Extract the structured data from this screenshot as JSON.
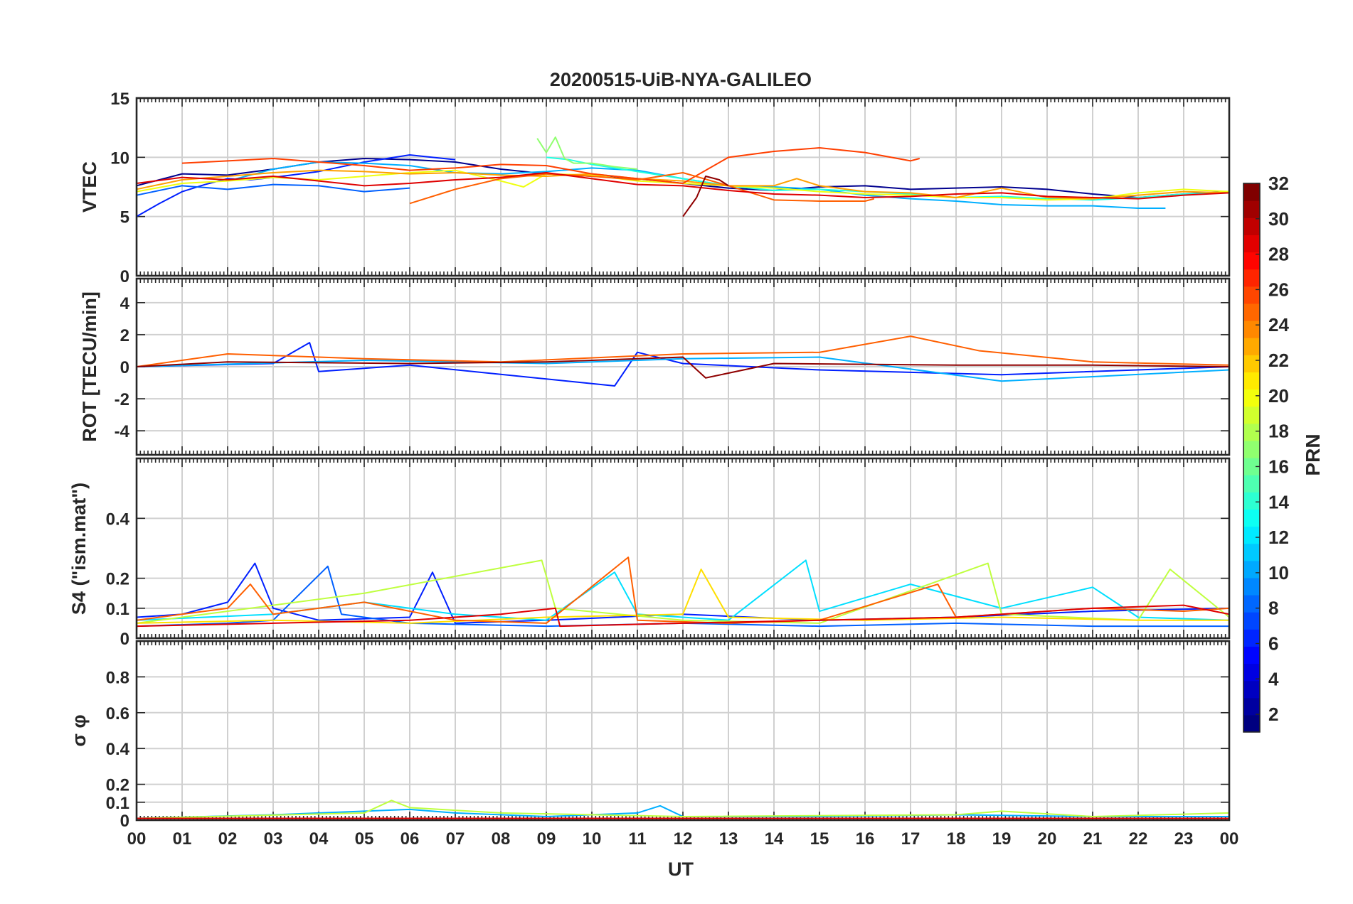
{
  "figure": {
    "title": "20200515-UiB-NYA-GALILEO",
    "xlabel": "UT",
    "colorbar": {
      "label": "PRN",
      "ticks": [
        "2",
        "4",
        "6",
        "8",
        "10",
        "12",
        "14",
        "16",
        "18",
        "20",
        "22",
        "24",
        "26",
        "28",
        "30",
        "32"
      ],
      "range": [
        1,
        32
      ],
      "colormap": "jet"
    }
  },
  "chart_data": [
    {
      "type": "line",
      "panel": "VTEC",
      "ylabel": "VTEC",
      "ylim": [
        0,
        15
      ],
      "yticks": [
        "0",
        "5",
        "10",
        "15"
      ],
      "xlim": [
        0,
        24
      ],
      "xticks": [
        "00",
        "01",
        "02",
        "03",
        "04",
        "05",
        "06",
        "07",
        "08",
        "09",
        "10",
        "11",
        "12",
        "13",
        "14",
        "15",
        "16",
        "17",
        "18",
        "19",
        "20",
        "21",
        "22",
        "23",
        "00"
      ],
      "grid": true,
      "series": [
        {
          "color": "#00008f",
          "x": [
            0,
            1,
            2,
            3,
            4,
            5,
            6,
            7,
            8,
            9,
            10,
            11,
            12,
            13,
            14,
            15,
            16,
            17,
            18,
            19,
            20,
            21,
            22,
            23,
            24
          ],
          "y": [
            7.6,
            8.6,
            8.5,
            9.0,
            9.6,
            9.9,
            9.8,
            9.6,
            9.0,
            8.6,
            8.4,
            8.2,
            7.8,
            7.4,
            7.2,
            7.5,
            7.6,
            7.3,
            7.4,
            7.5,
            7.3,
            6.9,
            6.6,
            6.9,
            7.1
          ]
        },
        {
          "color": "#001fff",
          "x": [
            0,
            0.5,
            1,
            1.5,
            2,
            2.5,
            3,
            4,
            5,
            6,
            6.5,
            7
          ],
          "y": [
            5.0,
            6.1,
            7.1,
            7.7,
            8.2,
            8.1,
            8.3,
            8.8,
            9.6,
            10.2,
            10.0,
            9.8
          ]
        },
        {
          "color": "#0060ff",
          "x": [
            0,
            1,
            2,
            3,
            4,
            5,
            6
          ],
          "y": [
            6.8,
            7.6,
            7.3,
            7.7,
            7.6,
            7.1,
            7.4
          ]
        },
        {
          "color": "#00afff",
          "x": [
            2,
            3,
            4,
            5,
            6,
            7,
            8,
            9,
            10,
            11,
            12,
            13,
            14,
            15,
            16,
            17,
            18,
            19,
            20,
            21,
            22,
            22.6
          ],
          "y": [
            8.0,
            9.0,
            9.6,
            9.5,
            9.3,
            8.7,
            8.6,
            8.8,
            9.1,
            8.9,
            8.2,
            7.6,
            7.5,
            7.3,
            6.8,
            6.5,
            6.3,
            6.0,
            5.9,
            5.9,
            5.7,
            5.7
          ]
        },
        {
          "color": "#20ffdf",
          "x": [
            9,
            9.5,
            10,
            11,
            12,
            13,
            14,
            15,
            16,
            17,
            18,
            19,
            20,
            21,
            22,
            23,
            24
          ],
          "y": [
            10.0,
            9.8,
            9.4,
            8.8,
            8.2,
            7.6,
            7.2,
            7.3,
            7.1,
            6.9,
            6.6,
            6.7,
            6.5,
            6.4,
            6.6,
            6.9,
            7.0
          ]
        },
        {
          "color": "#90ff6f",
          "x": [
            8.8,
            9.0,
            9.2,
            9.4,
            9.6,
            10,
            10.5,
            11
          ],
          "y": [
            11.6,
            10.4,
            11.7,
            9.9,
            9.5,
            9.5,
            9.2,
            9.0
          ]
        },
        {
          "color": "#efff10",
          "x": [
            0,
            1,
            2,
            3,
            4,
            5,
            6,
            7,
            8,
            8.5,
            9,
            10,
            11,
            12,
            13,
            14,
            15,
            16,
            17,
            18,
            19,
            20,
            21,
            22,
            23,
            24
          ],
          "y": [
            7.1,
            7.8,
            8.0,
            8.3,
            8.1,
            8.4,
            8.7,
            8.9,
            8.0,
            7.5,
            8.6,
            8.5,
            8.0,
            7.8,
            7.6,
            7.4,
            7.1,
            6.9,
            6.8,
            6.6,
            6.6,
            6.4,
            6.5,
            7.0,
            7.3,
            7.1
          ]
        },
        {
          "color": "#ff9f00",
          "x": [
            0,
            1,
            2,
            3,
            4,
            5,
            6,
            7,
            8,
            9,
            10,
            11,
            12,
            13,
            14,
            14.5,
            15,
            16,
            17,
            18,
            19,
            20,
            21,
            22,
            23,
            24
          ],
          "y": [
            7.3,
            8.1,
            8.4,
            8.7,
            8.9,
            8.8,
            8.6,
            8.7,
            8.5,
            8.4,
            8.6,
            8.2,
            8.0,
            7.6,
            7.6,
            8.2,
            7.6,
            7.1,
            7.0,
            6.6,
            7.4,
            6.6,
            6.5,
            6.8,
            7.1,
            7.0
          ]
        },
        {
          "color": "#ff3f00",
          "x": [
            1,
            2,
            3,
            4,
            5,
            6,
            7,
            8,
            9,
            10,
            11,
            12,
            13,
            14,
            15,
            16,
            17,
            17.2
          ],
          "y": [
            9.5,
            9.7,
            9.9,
            9.6,
            9.3,
            8.9,
            9.1,
            9.4,
            9.3,
            8.6,
            8.2,
            7.8,
            10.0,
            10.5,
            10.8,
            10.4,
            9.7,
            9.9
          ]
        },
        {
          "color": "#ff5f00",
          "x": [
            6,
            7,
            8,
            9,
            10,
            11,
            12,
            13,
            14,
            15,
            16,
            16.2
          ],
          "y": [
            6.1,
            7.3,
            8.2,
            8.6,
            8.4,
            8.1,
            8.7,
            7.6,
            6.4,
            6.3,
            6.3,
            6.5
          ]
        },
        {
          "color": "#df0000",
          "x": [
            0,
            1,
            2,
            3,
            4,
            5,
            6,
            7,
            8,
            9,
            10,
            11,
            12,
            13,
            14,
            15,
            16,
            17,
            18,
            19,
            20,
            21,
            22,
            23,
            24
          ],
          "y": [
            7.8,
            8.3,
            8.1,
            8.4,
            8.0,
            7.6,
            7.8,
            8.1,
            8.3,
            8.7,
            8.2,
            7.7,
            7.6,
            7.2,
            6.9,
            6.8,
            6.6,
            6.7,
            6.9,
            7.0,
            6.7,
            6.6,
            6.5,
            6.8,
            7.0
          ]
        },
        {
          "color": "#8f0000",
          "x": [
            12.0,
            12.3,
            12.5,
            12.8,
            13
          ],
          "y": [
            5.0,
            6.6,
            8.4,
            8.1,
            7.6
          ]
        }
      ]
    },
    {
      "type": "line",
      "panel": "ROT",
      "ylabel": "ROT [TECU/min]",
      "ylim": [
        -5.5,
        5.5
      ],
      "yticks": [
        "-4",
        "-2",
        "0",
        "2",
        "4"
      ],
      "xlim": [
        0,
        24
      ],
      "grid": true,
      "series": [
        {
          "color": "#001fff",
          "x": [
            0,
            3,
            3.8,
            4,
            6,
            10.5,
            11,
            12,
            15,
            19,
            24
          ],
          "y": [
            0,
            0.2,
            1.5,
            -0.3,
            0.1,
            -1.2,
            0.9,
            0.2,
            -0.2,
            -0.5,
            0
          ]
        },
        {
          "color": "#00afff",
          "x": [
            0,
            5,
            7,
            9,
            12,
            15,
            19,
            24
          ],
          "y": [
            0,
            0.4,
            0.3,
            0.2,
            0.5,
            0.6,
            -0.9,
            -0.2
          ]
        },
        {
          "color": "#ff5f00",
          "x": [
            0,
            2,
            5,
            8,
            12,
            15,
            17,
            18.5,
            21,
            24
          ],
          "y": [
            0,
            0.8,
            0.5,
            0.3,
            0.8,
            0.9,
            1.9,
            1.0,
            0.3,
            0.1
          ]
        },
        {
          "color": "#8f0000",
          "x": [
            0,
            2,
            6,
            9,
            12,
            12.5,
            14,
            18,
            21,
            24
          ],
          "y": [
            0,
            0.3,
            0.2,
            0.3,
            0.6,
            -0.7,
            0.2,
            0.1,
            0.1,
            0
          ]
        }
      ]
    },
    {
      "type": "line",
      "panel": "S4",
      "ylabel": "S4 (\"ism.mat\")",
      "ylim": [
        0,
        0.6
      ],
      "yticks": [
        "0",
        "0.1",
        "0.2",
        "0.4"
      ],
      "xlim": [
        0,
        24
      ],
      "grid": true,
      "series": [
        {
          "color": "#001fff",
          "x": [
            0,
            1,
            2,
            2.6,
            3,
            4,
            6,
            6.5,
            7,
            9,
            12,
            15,
            18,
            21,
            24
          ],
          "y": [
            0.07,
            0.08,
            0.12,
            0.25,
            0.1,
            0.06,
            0.07,
            0.22,
            0.05,
            0.06,
            0.08,
            0.06,
            0.07,
            0.09,
            0.1
          ]
        },
        {
          "color": "#0060ff",
          "x": [
            0,
            2,
            3,
            4.2,
            4.5,
            6,
            9,
            12,
            15,
            18,
            21,
            24
          ],
          "y": [
            0.04,
            0.05,
            0.06,
            0.24,
            0.08,
            0.05,
            0.04,
            0.05,
            0.04,
            0.05,
            0.04,
            0.04
          ]
        },
        {
          "color": "#00dfff",
          "x": [
            0,
            3,
            5,
            7,
            9,
            10.5,
            11,
            13,
            14.7,
            15,
            17,
            19,
            21,
            22,
            24
          ],
          "y": [
            0.06,
            0.08,
            0.12,
            0.08,
            0.06,
            0.22,
            0.08,
            0.06,
            0.26,
            0.09,
            0.18,
            0.1,
            0.17,
            0.07,
            0.06
          ]
        },
        {
          "color": "#bfff3f",
          "x": [
            0,
            5,
            8.9,
            9.2,
            12,
            15,
            18.7,
            19,
            22,
            22.7,
            24
          ],
          "y": [
            0.05,
            0.15,
            0.26,
            0.1,
            0.06,
            0.05,
            0.25,
            0.08,
            0.06,
            0.23,
            0.07
          ]
        },
        {
          "color": "#ffdf00",
          "x": [
            0,
            3,
            6,
            9,
            12,
            12.4,
            13,
            16,
            19,
            22,
            24
          ],
          "y": [
            0.05,
            0.06,
            0.05,
            0.07,
            0.08,
            0.23,
            0.07,
            0.06,
            0.07,
            0.06,
            0.06
          ]
        },
        {
          "color": "#ff5f00",
          "x": [
            0,
            2,
            2.5,
            3,
            5,
            7,
            9,
            10.8,
            11,
            13,
            15,
            17.6,
            18,
            21,
            23,
            24
          ],
          "y": [
            0.06,
            0.1,
            0.18,
            0.08,
            0.12,
            0.06,
            0.05,
            0.27,
            0.06,
            0.05,
            0.06,
            0.18,
            0.07,
            0.1,
            0.09,
            0.1
          ]
        },
        {
          "color": "#df0000",
          "x": [
            0,
            3,
            6,
            8,
            9.2,
            9.3,
            12,
            15,
            18,
            21,
            23,
            24
          ],
          "y": [
            0.04,
            0.05,
            0.06,
            0.08,
            0.1,
            0.04,
            0.05,
            0.06,
            0.07,
            0.1,
            0.11,
            0.08
          ]
        }
      ]
    },
    {
      "type": "line",
      "panel": "sigma_phi",
      "ylabel": "σ φ",
      "ylim": [
        0,
        1
      ],
      "yticks": [
        "0",
        "0.1",
        "0.2",
        "0.4",
        "0.6",
        "0.8"
      ],
      "xlim": [
        0,
        24
      ],
      "grid": true,
      "series": [
        {
          "color": "#00afff",
          "x": [
            0,
            3,
            5,
            6,
            7,
            9,
            11,
            11.5,
            12,
            15,
            18,
            21,
            24
          ],
          "y": [
            0.01,
            0.03,
            0.05,
            0.06,
            0.04,
            0.02,
            0.04,
            0.08,
            0.02,
            0.02,
            0.03,
            0.02,
            0.02
          ]
        },
        {
          "color": "#bfff3f",
          "x": [
            0,
            5,
            5.6,
            6,
            8,
            12,
            18,
            19,
            21,
            24
          ],
          "y": [
            0.01,
            0.04,
            0.11,
            0.07,
            0.04,
            0.02,
            0.03,
            0.05,
            0.02,
            0.04
          ]
        },
        {
          "color": "#df0000",
          "x": [
            0,
            6,
            12,
            18,
            24
          ],
          "y": [
            0.01,
            0.01,
            0.01,
            0.01,
            0.01
          ]
        }
      ]
    }
  ]
}
